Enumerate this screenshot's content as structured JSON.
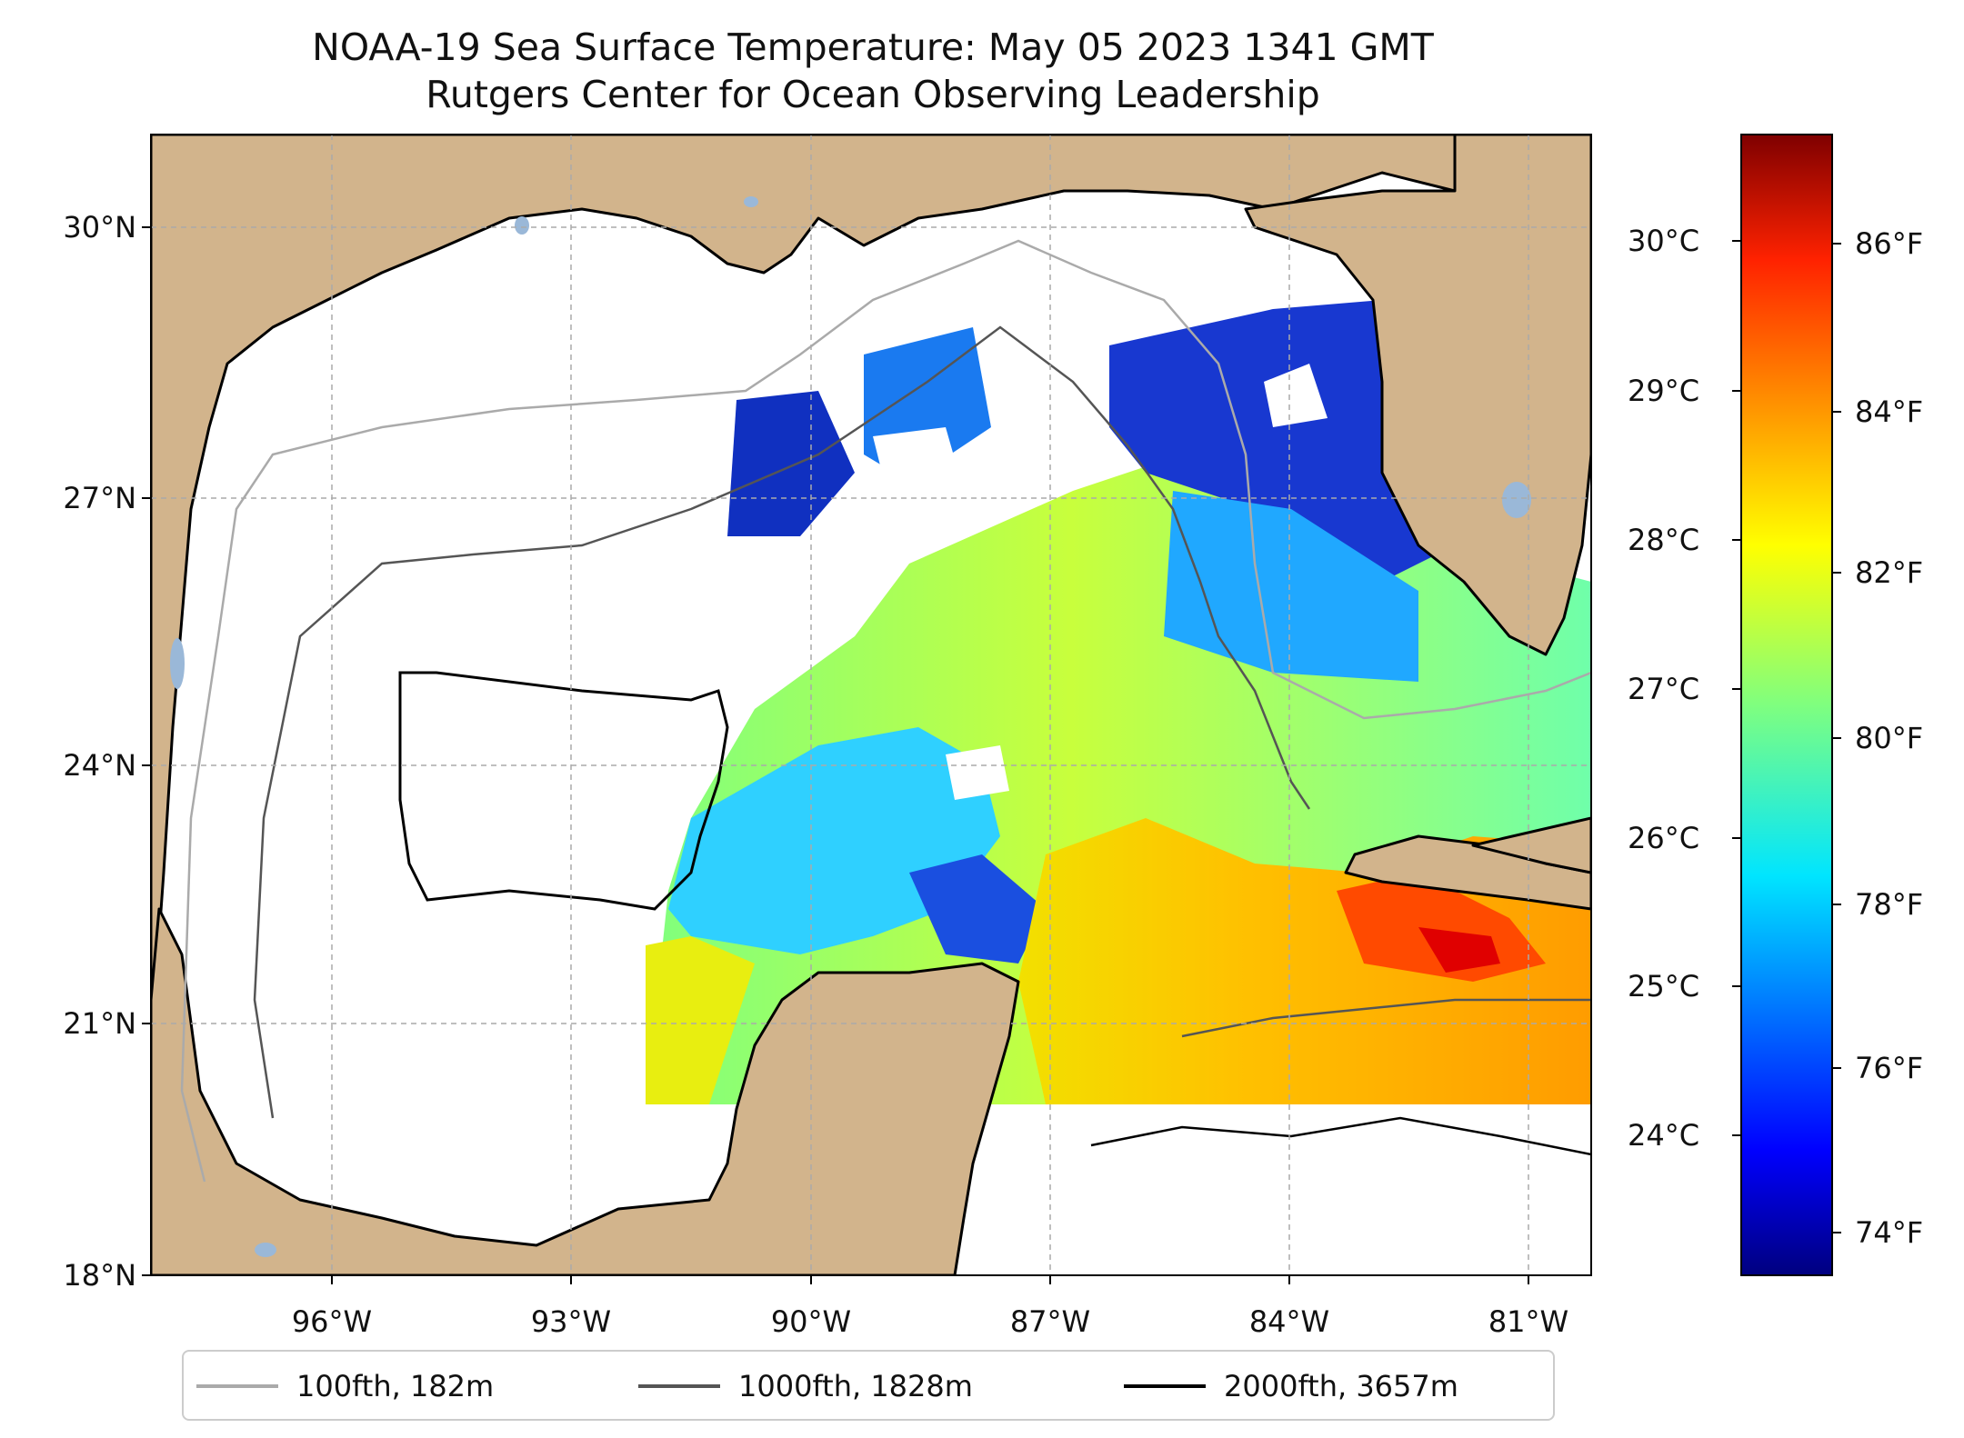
{
  "title": "NOAA-19 Sea Surface Temperature: May 05 2023 1341 GMT",
  "subtitle": "Rutgers Center for Ocean Observing Leadership",
  "latitude_ticks": [
    "30°N",
    "27°N",
    "24°N",
    "21°N",
    "18°N"
  ],
  "longitude_ticks": [
    "96°W",
    "93°W",
    "90°W",
    "87°W",
    "84°W",
    "81°W"
  ],
  "colorbar": {
    "celsius_ticks": [
      "30°C",
      "29°C",
      "28°C",
      "27°C",
      "26°C",
      "25°C",
      "24°C"
    ],
    "fahrenheit_ticks": [
      "86°F",
      "84°F",
      "82°F",
      "80°F",
      "78°F",
      "76°F",
      "74°F"
    ],
    "colormap": "jet"
  },
  "legend": [
    {
      "label": "100fth, 182m",
      "color": "#aaaaaa"
    },
    {
      "label": "1000fth, 1828m",
      "color": "#555555"
    },
    {
      "label": "2000fth, 3657m",
      "color": "#000000"
    }
  ],
  "colors": {
    "land": "#d2b48c",
    "no_data": "#ffffff",
    "lakes": "#9ab8d8",
    "grid": "#aaaaaa"
  }
}
